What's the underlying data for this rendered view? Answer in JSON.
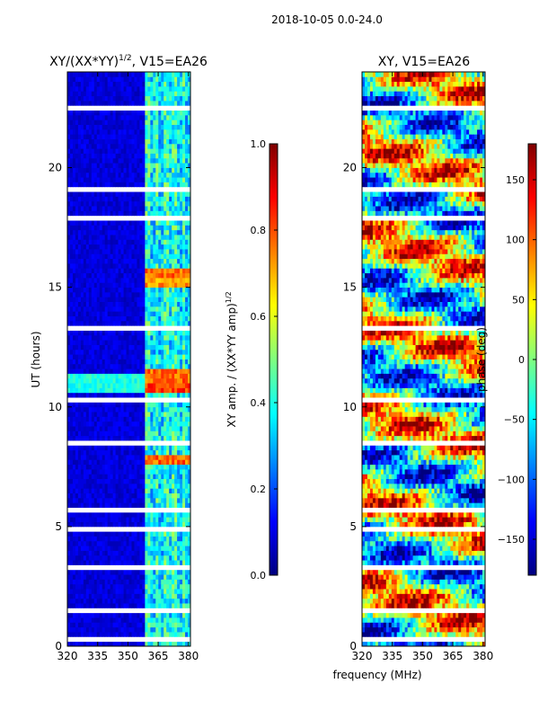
{
  "figure": {
    "suptitle": "2018-10-05 0.0-24.0",
    "xlabel": "frequency (MHz)"
  },
  "colors": {
    "jet": [
      "#00007f",
      "#0000ff",
      "#007fff",
      "#00ffff",
      "#7fff7f",
      "#ffff00",
      "#ff7f00",
      "#ff0000",
      "#7f0000"
    ],
    "frame": "#000000",
    "gap": "#ffffff"
  },
  "chart_data": [
    {
      "type": "heatmap",
      "title_main": "XY/(XX*YY)",
      "title_sup": "1/2",
      "title_rest": ", V15=EA26",
      "xlabel": "frequency (MHz)",
      "ylabel": "UT (hours)",
      "xlim": [
        320,
        381
      ],
      "ylim": [
        0,
        24
      ],
      "xticks": [
        320,
        335,
        350,
        365,
        380
      ],
      "yticks": [
        0,
        5,
        10,
        15,
        20
      ],
      "colorbar": {
        "label_main": "XY amp. / (XX*YY amp)",
        "label_sup": "1/2",
        "range": [
          0.0,
          1.0
        ],
        "ticks": [
          "0.0",
          "0.2",
          "0.4",
          "0.6",
          "0.8",
          "1.0"
        ],
        "tick_values": [
          0.0,
          0.2,
          0.4,
          0.6,
          0.8,
          1.0
        ]
      },
      "description_values": {
        "background_level": 0.05,
        "active_band_mhz": [
          359,
          381
        ],
        "high_amplitude_hours": [
          {
            "ut": 7.8,
            "value": 0.85
          },
          {
            "ut": 10.9,
            "value": 0.9
          },
          {
            "ut": 11.3,
            "value": 0.85
          },
          {
            "ut": 15.2,
            "value": 0.8
          },
          {
            "ut": 15.6,
            "value": 0.85
          }
        ],
        "flagged_ut_hours": [
          0.3,
          1.5,
          3.3,
          4.9,
          5.7,
          7.4,
          8.5,
          9.2,
          10.3,
          12.6,
          13.3,
          14.0,
          16.0,
          17.2,
          17.9,
          19.1,
          21.0,
          22.5,
          23.0,
          23.6
        ]
      }
    },
    {
      "type": "heatmap",
      "title_main": "XY, V15=EA26",
      "xlabel": "frequency (MHz)",
      "ylabel": "",
      "xlim": [
        320,
        381
      ],
      "ylim": [
        0,
        24
      ],
      "xticks": [
        320,
        335,
        350,
        365,
        380
      ],
      "yticks": [
        0,
        5,
        10,
        15,
        20
      ],
      "colorbar": {
        "label_main": "phase (deg)",
        "range": [
          -180,
          180
        ],
        "ticks": [
          "−150",
          "−100",
          "−50",
          "0",
          "50",
          "100",
          "150"
        ],
        "tick_values": [
          -150,
          -100,
          -50,
          0,
          50,
          100,
          150
        ]
      },
      "description_values": {
        "phase_range_deg": [
          -180,
          180
        ],
        "flagged_ut_hours": [
          0.3,
          1.5,
          3.3,
          4.9,
          5.7,
          7.4,
          8.5,
          9.2,
          10.3,
          12.6,
          13.3,
          14.0,
          16.0,
          17.2,
          17.9,
          19.1,
          21.0,
          22.5,
          23.0,
          23.6
        ]
      }
    }
  ]
}
